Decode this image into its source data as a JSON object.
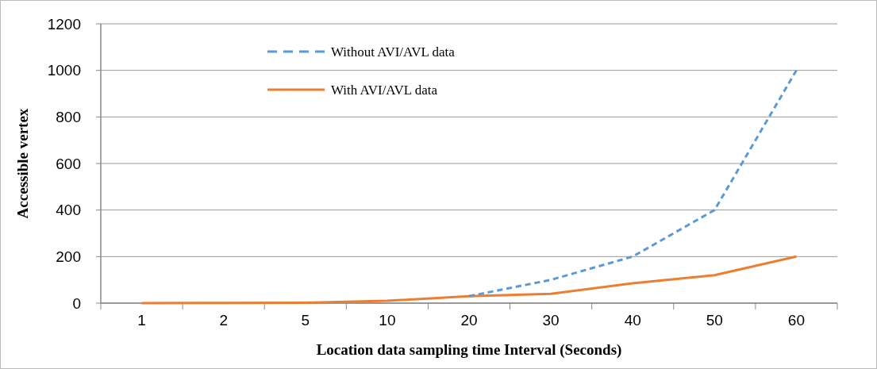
{
  "chart_data": {
    "type": "line",
    "xlabel": "Location data sampling time Interval (Seconds)",
    "ylabel": "Accessible vertex",
    "categories": [
      "1",
      "2",
      "5",
      "10",
      "20",
      "30",
      "40",
      "50",
      "60"
    ],
    "series": [
      {
        "name": "Without AVI/AVL data",
        "color": "#5b9bd5",
        "line_style": "dashed",
        "values": [
          null,
          null,
          null,
          null,
          30,
          100,
          200,
          400,
          1000
        ]
      },
      {
        "name": "With AVI/AVL data",
        "color": "#ed7d31",
        "line_style": "solid",
        "values": [
          0,
          1,
          2,
          10,
          30,
          40,
          85,
          120,
          200
        ]
      }
    ],
    "ylim": [
      0,
      1200
    ],
    "yticks": [
      0,
      200,
      400,
      600,
      800,
      1000,
      1200
    ],
    "grid": "y",
    "legend": "top left",
    "marker": "none"
  }
}
